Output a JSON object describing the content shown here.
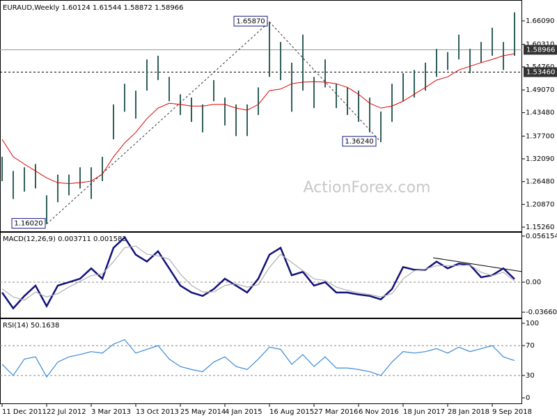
{
  "chart_data": [
    {
      "type": "hlbar",
      "title": "EURAUD,Weekly  1.60124 1.61544 1.58872 1.58966",
      "watermark": "ActionForex.com",
      "categories": [
        "11 Dec 2011",
        null,
        null,
        null,
        "22 Jul 2012",
        null,
        null,
        null,
        "3 Mar 2013",
        null,
        null,
        null,
        "13 Oct 2013",
        null,
        null,
        null,
        "25 May 2014",
        null,
        null,
        null,
        "4 Jan 2015",
        null,
        null,
        null,
        "16 Aug 2015",
        null,
        null,
        null,
        "27 Mar 2016",
        null,
        null,
        null,
        "6 Nov 2016",
        null,
        null,
        null,
        "18 Jun 2017",
        null,
        null,
        null,
        "28 Jan 2018",
        null,
        null,
        null,
        "9 Sep 2018",
        null,
        null
      ],
      "high": [
        1.326,
        1.291,
        1.3,
        1.308,
        1.231,
        1.282,
        1.282,
        1.3,
        1.3,
        1.326,
        1.455,
        1.506,
        1.489,
        1.566,
        1.575,
        1.523,
        1.48,
        1.472,
        1.455,
        1.515,
        1.472,
        1.455,
        1.455,
        1.497,
        1.6587,
        1.609,
        1.558,
        1.627,
        1.523,
        1.566,
        1.506,
        1.497,
        1.489,
        1.472,
        1.4375,
        1.506,
        1.532,
        1.54,
        1.558,
        1.592,
        1.584,
        1.627,
        1.592,
        1.609,
        1.644,
        1.609,
        1.682
      ],
      "low": [
        1.266,
        1.222,
        1.24,
        1.248,
        1.1602,
        1.214,
        1.231,
        1.248,
        1.222,
        1.266,
        1.369,
        1.437,
        1.42,
        1.489,
        1.515,
        1.463,
        1.429,
        1.412,
        1.386,
        1.463,
        1.403,
        1.377,
        1.377,
        1.429,
        1.523,
        1.515,
        1.437,
        1.489,
        1.446,
        1.497,
        1.446,
        1.429,
        1.412,
        1.386,
        1.3624,
        1.412,
        1.463,
        1.472,
        1.489,
        1.523,
        1.54,
        1.566,
        1.532,
        1.558,
        1.575,
        1.54,
        1.575
      ],
      "color": "#2f5f5a",
      "ma": {
        "color": "#e00000",
        "values": [
          1.369,
          1.326,
          1.308,
          1.291,
          1.274,
          1.262,
          1.26,
          1.262,
          1.266,
          1.283,
          1.326,
          1.36,
          1.386,
          1.42,
          1.446,
          1.458,
          1.455,
          1.451,
          1.451,
          1.455,
          1.455,
          1.446,
          1.441,
          1.455,
          1.489,
          1.493,
          1.506,
          1.51,
          1.511,
          1.51,
          1.506,
          1.497,
          1.48,
          1.458,
          1.446,
          1.451,
          1.463,
          1.48,
          1.497,
          1.515,
          1.523,
          1.54,
          1.549,
          1.558,
          1.566,
          1.575,
          1.58
        ]
      },
      "ylim": [
        1.1423,
        1.709
      ],
      "yticks": [
        {
          "value": 1.1526,
          "label": "1.15260"
        },
        {
          "value": 1.2087,
          "label": "1.20870"
        },
        {
          "value": 1.2648,
          "label": "1.26480"
        },
        {
          "value": 1.3209,
          "label": "1.32090"
        },
        {
          "value": 1.377,
          "label": "1.37700"
        },
        {
          "value": 1.4348,
          "label": "1.43480"
        },
        {
          "value": 1.4907,
          "label": "1.49070"
        },
        {
          "value": 1.5476,
          "label": "1.54760"
        },
        {
          "value": 1.6031,
          "label": "1.60310"
        },
        {
          "value": 1.6609,
          "label": "1.66090"
        }
      ],
      "lines": [
        {
          "value": 1.58966,
          "label": "1.58966",
          "style": "solid"
        },
        {
          "value": 1.5346,
          "label": "1.53460",
          "style": "dashed"
        }
      ],
      "annotations": [
        {
          "value": 1.1602,
          "label": "1.16020"
        },
        {
          "value": 1.6587,
          "label": "1.65870"
        },
        {
          "value": 1.3624,
          "label": "1.36240"
        }
      ]
    },
    {
      "type": "line",
      "title": "MACD(12,26,9) 0.003711 0.001583",
      "series": [
        {
          "color": "#10107a",
          "values": [
            -0.0126,
            -0.0319,
            -0.0168,
            -0.0042,
            -0.0293,
            -0.0042,
            0,
            0.0042,
            0.0168,
            0.0042,
            0.0419,
            0.0545,
            0.0335,
            0.0251,
            0.0377,
            0.0168,
            -0.0042,
            -0.0126,
            -0.0168,
            -0.0084,
            0.0042,
            -0.0042,
            -0.0126,
            0.0042,
            0.0335,
            0.0419,
            0.0084,
            0.0126,
            -0.0042,
            0,
            -0.0126,
            -0.0126,
            -0.0151,
            -0.0168,
            -0.021,
            -0.0084,
            0.0184,
            0.0151,
            0.0151,
            0.0251,
            0.0168,
            0.0226,
            0.021,
            0.0059,
            0.0084,
            0.0168,
            0.0037
          ]
        },
        {
          "color": "#b0b0b0",
          "values": [
            -0.008,
            -0.018,
            -0.022,
            -0.012,
            -0.018,
            -0.014,
            -0.006,
            0.001,
            0.008,
            0.01,
            0.025,
            0.042,
            0.044,
            0.034,
            0.032,
            0.028,
            0.01,
            -0.004,
            -0.012,
            -0.012,
            -0.004,
            -0.002,
            -0.006,
            -0.003,
            0.018,
            0.034,
            0.024,
            0.014,
            0.004,
            0.002,
            -0.006,
            -0.01,
            -0.013,
            -0.015,
            -0.018,
            -0.014,
            0.004,
            0.014,
            0.016,
            0.02,
            0.02,
            0.02,
            0.021,
            0.012,
            0.008,
            0.012,
            0.0016
          ]
        }
      ],
      "ylim": [
        -0.0433,
        0.0603
      ],
      "yticks": [
        -0.036601,
        {
          "value": 0,
          "label": "0.00"
        },
        0.056154
      ],
      "level_lines": [
        0
      ]
    },
    {
      "type": "line",
      "title": "RSI(14) 50.1638",
      "series": [
        {
          "color": "#3a8ad8",
          "values": [
            45,
            30,
            52,
            55,
            28,
            48,
            55,
            58,
            62,
            60,
            72,
            78,
            60,
            65,
            70,
            52,
            42,
            38,
            35,
            48,
            55,
            42,
            38,
            52,
            68,
            65,
            45,
            58,
            42,
            55,
            40,
            40,
            38,
            35,
            30,
            48,
            62,
            60,
            62,
            66,
            60,
            68,
            62,
            66,
            70,
            55,
            50
          ]
        }
      ],
      "ylim": [
        -7.4,
        105.6
      ],
      "yticks": [
        0,
        30,
        70,
        100
      ],
      "level_lines": [
        70,
        30
      ]
    }
  ]
}
